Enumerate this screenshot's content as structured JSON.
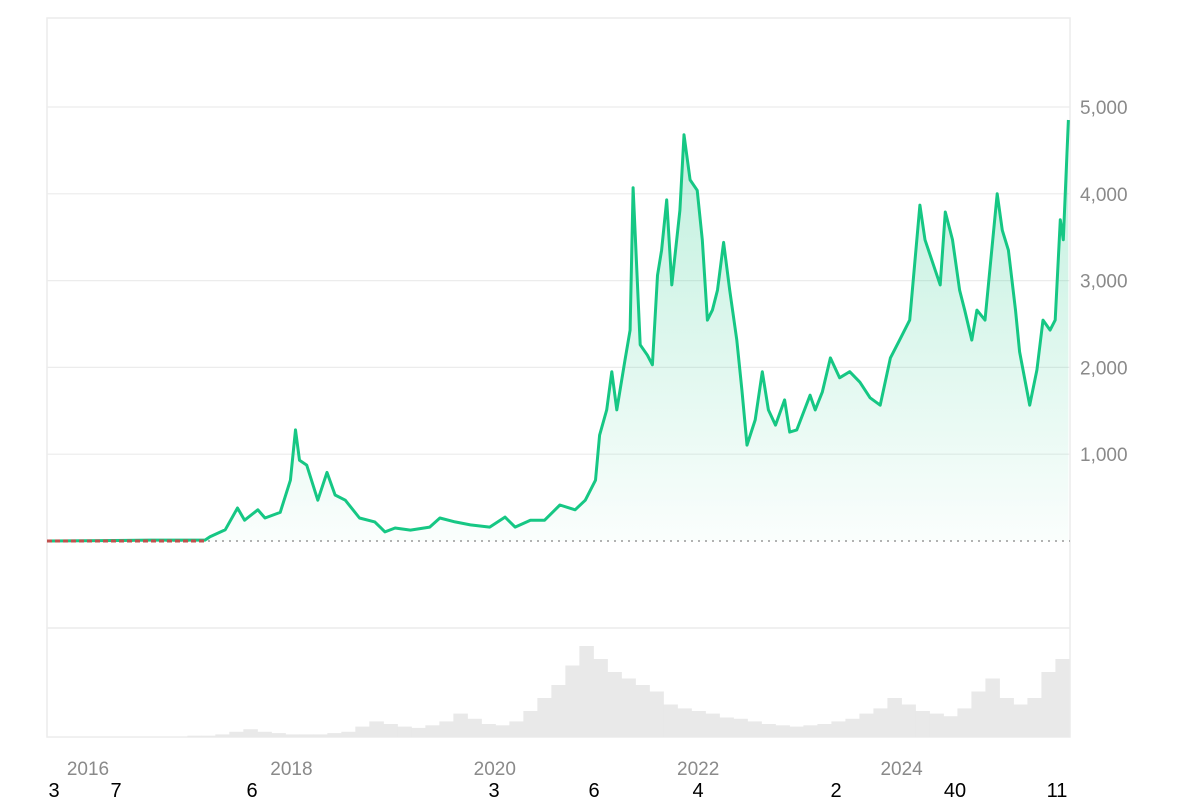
{
  "chart_data": {
    "type": "area",
    "title": "",
    "xlabel": "",
    "ylabel": "",
    "x_ticks": [
      "2016",
      "2018",
      "2020",
      "2022",
      "2024"
    ],
    "y_ticks": [
      "1,000",
      "2,000",
      "3,000",
      "4,000",
      "5,000"
    ],
    "y_tick_values": [
      1000,
      2000,
      3000,
      4000,
      5000
    ],
    "xlim": [
      2015.6,
      2025.65
    ],
    "ylim": [
      0,
      5800
    ],
    "grid": true,
    "line_color": "#16c784",
    "early_segment_color": "#c0504d",
    "volume_color": "#e9e9e9",
    "series": [
      {
        "x": [
          2015.6,
          2016.12,
          2016.61,
          2017.15,
          2017.2,
          2017.35,
          2017.47,
          2017.54,
          2017.67,
          2017.74,
          2017.89,
          2017.99,
          2018.04,
          2018.08,
          2018.15,
          2018.26,
          2018.35,
          2018.43,
          2018.53,
          2018.67,
          2018.82,
          2018.92,
          2019.02,
          2019.17,
          2019.36,
          2019.46,
          2019.61,
          2019.76,
          2019.95,
          2020.1,
          2020.2,
          2020.35,
          2020.49,
          2020.64,
          2020.79,
          2020.89,
          2020.99,
          2021.03,
          2021.1,
          2021.15,
          2021.2,
          2021.28,
          2021.33,
          2021.36,
          2021.43,
          2021.5,
          2021.55,
          2021.6,
          2021.64,
          2021.69,
          2021.74,
          2021.82,
          2021.86,
          2021.92,
          2021.99,
          2022.04,
          2022.09,
          2022.14,
          2022.19,
          2022.25,
          2022.31,
          2022.38,
          2022.43,
          2022.48,
          2022.56,
          2022.63,
          2022.69,
          2022.76,
          2022.85,
          2022.9,
          2022.97,
          2023.1,
          2023.15,
          2023.22,
          2023.3,
          2023.39,
          2023.49,
          2023.59,
          2023.69,
          2023.79,
          2023.89,
          2023.98,
          2024.08,
          2024.18,
          2024.23,
          2024.33,
          2024.38,
          2024.43,
          2024.5,
          2024.57,
          2024.62,
          2024.69,
          2024.74,
          2024.82,
          2024.94,
          2024.99,
          2025.05,
          2025.12,
          2025.16,
          2025.26,
          2025.33,
          2025.39,
          2025.46,
          2025.51,
          2025.56,
          2025.59,
          2025.64
        ],
        "y": [
          0,
          5,
          10,
          10,
          50,
          130,
          380,
          240,
          360,
          265,
          330,
          700,
          1280,
          930,
          875,
          470,
          790,
          530,
          470,
          265,
          220,
          105,
          150,
          125,
          160,
          265,
          220,
          185,
          160,
          275,
          160,
          240,
          240,
          415,
          360,
          470,
          700,
          1220,
          1510,
          1950,
          1510,
          2085,
          2430,
          4070,
          2260,
          2140,
          2030,
          3060,
          3350,
          3930,
          2950,
          3810,
          4680,
          4160,
          4040,
          3470,
          2545,
          2660,
          2890,
          3440,
          2890,
          2315,
          1740,
          1105,
          1395,
          1950,
          1510,
          1335,
          1625,
          1255,
          1280,
          1680,
          1510,
          1715,
          2110,
          1880,
          1950,
          1830,
          1650,
          1565,
          2110,
          2315,
          2545,
          3870,
          3470,
          3120,
          2950,
          3790,
          3470,
          2890,
          2660,
          2315,
          2660,
          2545,
          4000,
          3580,
          3350,
          2660,
          2180,
          1565,
          1970,
          2545,
          2430,
          2545,
          3700,
          3470,
          4850
        ]
      }
    ],
    "volume": {
      "x_start": 2015.6,
      "x_end": 2025.65,
      "relative_values": [
        0,
        0,
        0,
        0,
        0,
        0,
        0,
        0,
        0,
        0,
        1,
        1,
        2,
        4,
        6,
        4,
        3,
        2,
        2,
        2,
        3,
        4,
        8,
        12,
        10,
        8,
        7,
        9,
        12,
        18,
        14,
        10,
        9,
        12,
        20,
        30,
        40,
        55,
        70,
        60,
        50,
        45,
        40,
        35,
        25,
        22,
        20,
        18,
        15,
        14,
        12,
        10,
        9,
        8,
        9,
        10,
        12,
        14,
        18,
        22,
        30,
        25,
        20,
        18,
        16,
        22,
        35,
        45,
        30,
        25,
        30,
        50,
        60
      ]
    }
  },
  "bottom_labels": [
    "3",
    "7",
    "6",
    "3",
    "6",
    "4",
    "2",
    "40",
    "11"
  ]
}
